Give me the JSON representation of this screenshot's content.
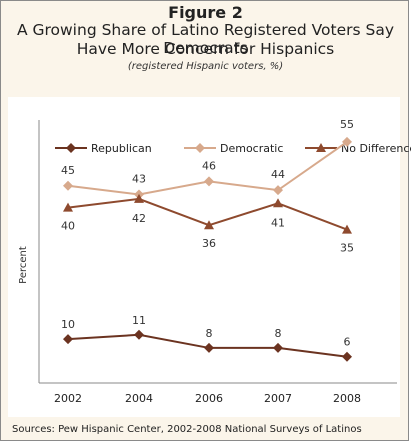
{
  "figure": {
    "label": "Figure 2",
    "title_line1": "A Growing Share of Latino Registered Voters Say Democrats",
    "title_line2": "Have More Concern for Hispanics",
    "subtitle": "(registered Hispanic voters, %)",
    "source": "Sources:  Pew Hispanic Center, 2002-2008 National Surveys of Latinos"
  },
  "colors": {
    "republican": "#6b3320",
    "democratic": "#d7a98c",
    "no_difference": "#8e4a2e"
  },
  "chart_data": {
    "type": "line",
    "categories": [
      "2002",
      "2004",
      "2006",
      "2007",
      "2008"
    ],
    "ylabel": "Percent",
    "xlabel": "",
    "ylim": [
      0,
      60
    ],
    "grid": false,
    "legend_position": "top",
    "series": [
      {
        "name": "Republican",
        "marker": "diamond",
        "values": [
          10,
          11,
          8,
          8,
          6
        ]
      },
      {
        "name": "Democratic",
        "marker": "diamond",
        "values": [
          45,
          43,
          46,
          44,
          55
        ]
      },
      {
        "name": "No Difference",
        "marker": "triangle",
        "values": [
          40,
          42,
          36,
          41,
          35
        ]
      }
    ]
  }
}
